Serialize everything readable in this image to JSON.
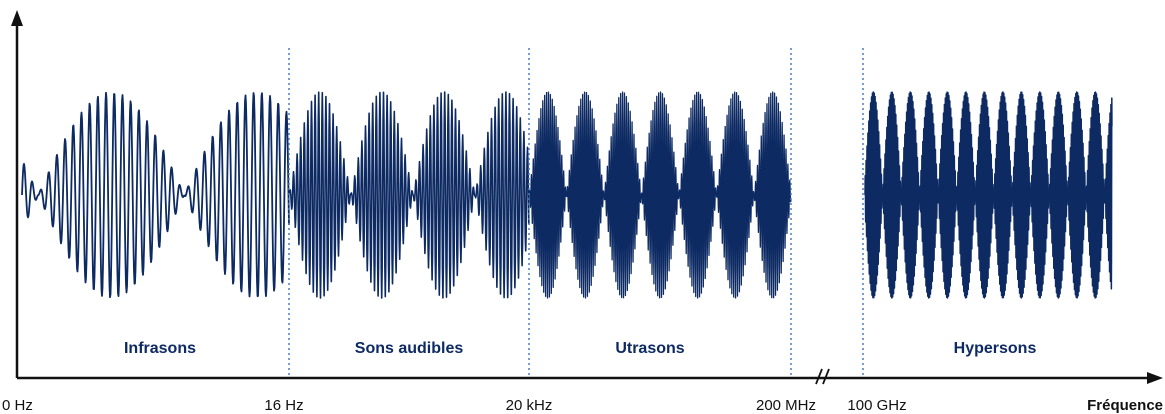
{
  "axis": {
    "x_title": "Fréquence"
  },
  "ticks": [
    "0 Hz",
    "16 Hz",
    "20 kHz",
    "200 MHz",
    "100 GHz"
  ],
  "bands": [
    {
      "label": "Infrasons"
    },
    {
      "label": "Sons audibles"
    },
    {
      "label": "Utrasons"
    },
    {
      "label": "Hypersons"
    }
  ],
  "colors": {
    "wave": "#0d2a63",
    "divider": "#4a7fc4",
    "axis": "#111111",
    "label": "#0d2a63"
  }
}
